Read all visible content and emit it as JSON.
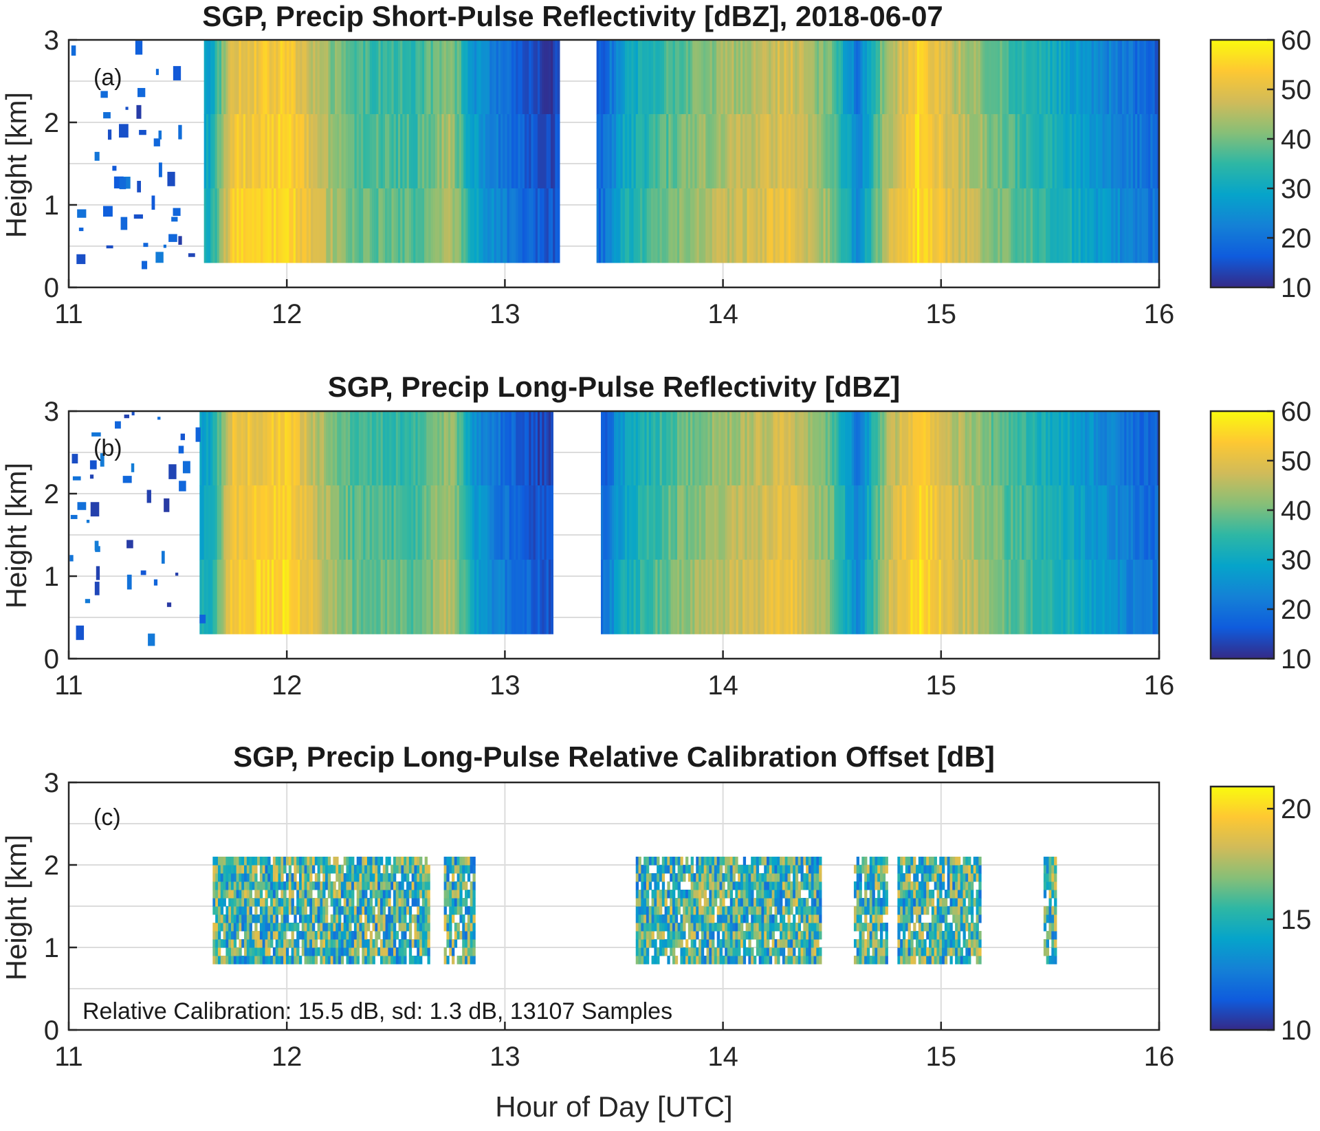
{
  "colors": {
    "colormap": [
      "#352a87",
      "#0f5cdd",
      "#1481d6",
      "#06a4ca",
      "#2eb7a4",
      "#87bf77",
      "#d1bb59",
      "#fec832",
      "#f9fb0e"
    ],
    "grid": "#dcdcdc",
    "axis": "#262626"
  },
  "chart_data": [
    {
      "type": "heatmap",
      "panel": "(a)",
      "title": "SGP, Precip Short-Pulse Reflectivity [dBZ], 2018-06-07",
      "xlabel": "",
      "ylabel": "Height [km]",
      "xlim": [
        11,
        16
      ],
      "ylim": [
        0,
        3
      ],
      "xticks": [
        "11",
        "12",
        "13",
        "14",
        "15",
        "16"
      ],
      "yticks": [
        "0",
        "1",
        "2",
        "3"
      ],
      "colorbar": {
        "range": [
          10,
          60
        ],
        "ticks": [
          "10",
          "20",
          "30",
          "40",
          "50",
          "60"
        ]
      },
      "grid": true,
      "data_height_range": [
        0.3,
        3.0
      ],
      "profile": {
        "hour": [
          11.0,
          11.6,
          11.65,
          11.75,
          12.0,
          12.15,
          12.3,
          12.6,
          12.75,
          12.85,
          13.0,
          13.2,
          13.45,
          13.55,
          13.8,
          14.1,
          14.3,
          14.5,
          14.62,
          14.75,
          14.9,
          15.05,
          15.3,
          15.6,
          15.85,
          16.0
        ],
        "dbz": [
          null,
          null,
          30,
          52,
          55,
          46,
          38,
          36,
          45,
          28,
          20,
          14,
          18,
          30,
          40,
          46,
          50,
          40,
          22,
          45,
          56,
          48,
          38,
          30,
          22,
          18
        ]
      },
      "echo_free_hours": [
        [
          11.0,
          11.62
        ],
        [
          13.25,
          13.42
        ]
      ]
    },
    {
      "type": "heatmap",
      "panel": "(b)",
      "title": "SGP, Precip Long-Pulse Reflectivity [dBZ]",
      "xlabel": "",
      "ylabel": "Height [km]",
      "xlim": [
        11,
        16
      ],
      "ylim": [
        0,
        3
      ],
      "xticks": [
        "11",
        "12",
        "13",
        "14",
        "15",
        "16"
      ],
      "yticks": [
        "0",
        "1",
        "2",
        "3"
      ],
      "colorbar": {
        "range": [
          10,
          60
        ],
        "ticks": [
          "10",
          "20",
          "30",
          "40",
          "50",
          "60"
        ]
      },
      "grid": true,
      "data_height_range": [
        0.3,
        3.0
      ],
      "profile": {
        "hour": [
          11.0,
          11.6,
          11.65,
          11.75,
          12.0,
          12.15,
          12.3,
          12.6,
          12.75,
          12.85,
          13.0,
          13.2,
          13.45,
          13.55,
          13.8,
          14.1,
          14.3,
          14.5,
          14.62,
          14.75,
          14.9,
          15.05,
          15.3,
          15.6,
          15.85,
          16.0
        ],
        "dbz": [
          null,
          null,
          30,
          52,
          55,
          46,
          38,
          36,
          45,
          28,
          20,
          14,
          18,
          30,
          40,
          46,
          50,
          40,
          22,
          45,
          56,
          48,
          38,
          30,
          22,
          18
        ]
      },
      "echo_free_hours": [
        [
          11.0,
          11.6
        ],
        [
          13.22,
          13.44
        ]
      ]
    },
    {
      "type": "heatmap",
      "panel": "(c)",
      "title": "SGP, Precip Long-Pulse Relative Calibration Offset [dB]",
      "xlabel": "Hour of Day [UTC]",
      "ylabel": "Height [km]",
      "xlim": [
        11,
        16
      ],
      "ylim": [
        0,
        3
      ],
      "xticks": [
        "11",
        "12",
        "13",
        "14",
        "15",
        "16"
      ],
      "yticks": [
        "0",
        "1",
        "2",
        "3"
      ],
      "colorbar": {
        "range": [
          10,
          21
        ],
        "ticks": [
          "10",
          "15",
          "20"
        ]
      },
      "grid": true,
      "data_height_range": [
        0.8,
        2.1
      ],
      "mean_offset_db": 15.5,
      "segments_hours": [
        [
          11.66,
          12.65
        ],
        [
          12.72,
          12.86
        ],
        [
          13.6,
          14.45
        ],
        [
          14.6,
          14.75
        ],
        [
          14.8,
          15.18
        ],
        [
          15.47,
          15.52
        ]
      ],
      "annotation": "Relative Calibration: 15.5 dB, sd: 1.3 dB, 13107 Samples"
    }
  ]
}
